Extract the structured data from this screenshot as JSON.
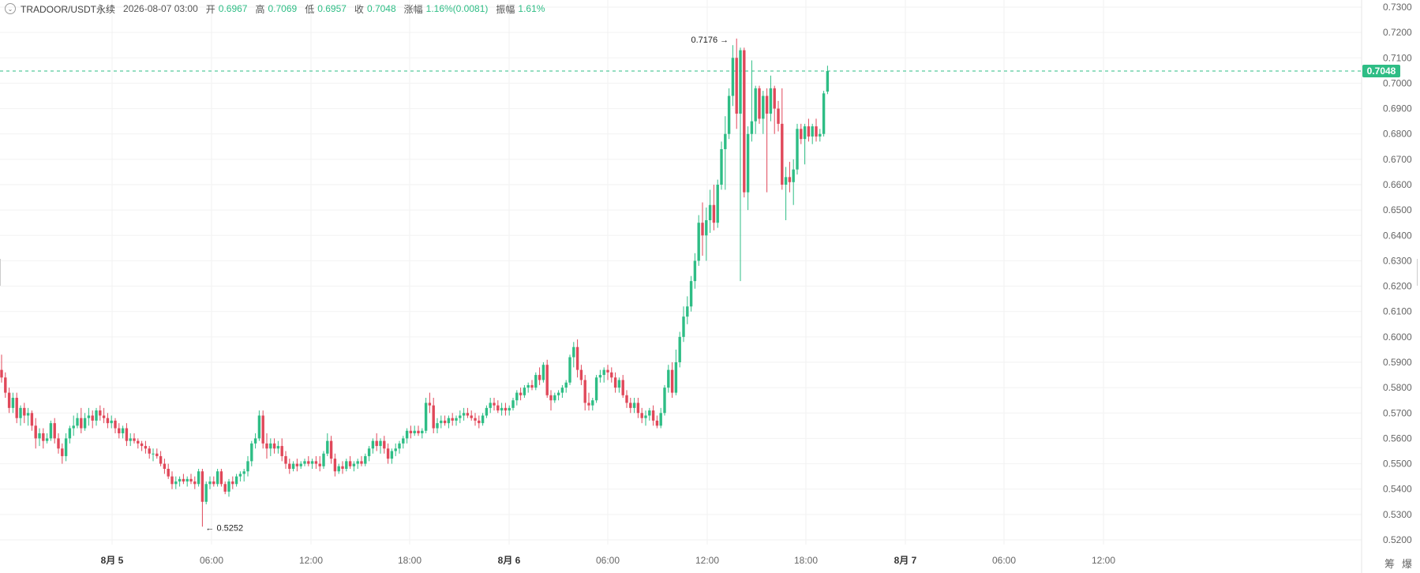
{
  "header": {
    "symbol": "TRADOOR/USDT永续",
    "timestamp": "2026-08-07 03:00",
    "open_label": "开",
    "open": "0.6967",
    "high_label": "高",
    "high": "0.7069",
    "low_label": "低",
    "low": "0.6957",
    "close_label": "收",
    "close": "0.7048",
    "change_label": "涨幅",
    "change": "1.16%(0.0081)",
    "amp_label": "振幅",
    "amplitude": "1.61%"
  },
  "corner": {
    "chip_label": "筹",
    "burst_label": "爆"
  },
  "colors": {
    "up": "#2ebd85",
    "down": "#e0485a",
    "grid": "#f2f2f2",
    "axis_text": "#666666"
  },
  "chart_data": {
    "type": "candlestick",
    "interval_hours": 0.5,
    "start_time": "2026-08-04 20:00",
    "y_ticks": [
      "0.7300",
      "0.7200",
      "0.7100",
      "0.7000",
      "0.6900",
      "0.6800",
      "0.6700",
      "0.6600",
      "0.6500",
      "0.6400",
      "0.6300",
      "0.6200",
      "0.6100",
      "0.6000",
      "0.5900",
      "0.5800",
      "0.5700",
      "0.5600",
      "0.5500",
      "0.5400",
      "0.5300",
      "0.5200"
    ],
    "y_range": [
      0.5175,
      0.7325
    ],
    "x_ticks": [
      "8月 5",
      "06:00",
      "12:00",
      "18:00",
      "8月 6",
      "06:00",
      "12:00",
      "18:00",
      "8月 7",
      "06:00",
      "12:00"
    ],
    "current_price": "0.7048",
    "annotations": [
      {
        "label": "0.7176",
        "kind": "high"
      },
      {
        "label": "0.5252",
        "kind": "low"
      }
    ],
    "candles": [
      [
        0.587,
        0.593,
        0.582,
        0.584
      ],
      [
        0.584,
        0.586,
        0.576,
        0.578
      ],
      [
        0.578,
        0.58,
        0.57,
        0.572
      ],
      [
        0.572,
        0.578,
        0.57,
        0.576
      ],
      [
        0.576,
        0.578,
        0.566,
        0.568
      ],
      [
        0.568,
        0.573,
        0.565,
        0.572
      ],
      [
        0.572,
        0.574,
        0.566,
        0.569
      ],
      [
        0.569,
        0.572,
        0.565,
        0.57
      ],
      [
        0.57,
        0.571,
        0.563,
        0.565
      ],
      [
        0.565,
        0.568,
        0.556,
        0.56
      ],
      [
        0.56,
        0.564,
        0.557,
        0.562
      ],
      [
        0.562,
        0.564,
        0.556,
        0.559
      ],
      [
        0.559,
        0.562,
        0.558,
        0.56
      ],
      [
        0.56,
        0.567,
        0.559,
        0.566
      ],
      [
        0.566,
        0.568,
        0.558,
        0.56
      ],
      [
        0.56,
        0.562,
        0.554,
        0.556
      ],
      [
        0.556,
        0.558,
        0.55,
        0.553
      ],
      [
        0.553,
        0.562,
        0.551,
        0.56
      ],
      [
        0.56,
        0.565,
        0.558,
        0.564
      ],
      [
        0.564,
        0.569,
        0.561,
        0.565
      ],
      [
        0.565,
        0.57,
        0.564,
        0.568
      ],
      [
        0.568,
        0.572,
        0.562,
        0.564
      ],
      [
        0.564,
        0.57,
        0.563,
        0.568
      ],
      [
        0.568,
        0.572,
        0.565,
        0.569
      ],
      [
        0.569,
        0.571,
        0.564,
        0.567
      ],
      [
        0.567,
        0.572,
        0.565,
        0.571
      ],
      [
        0.571,
        0.573,
        0.567,
        0.569
      ],
      [
        0.569,
        0.572,
        0.566,
        0.568
      ],
      [
        0.568,
        0.57,
        0.564,
        0.566
      ],
      [
        0.566,
        0.569,
        0.564,
        0.567
      ],
      [
        0.567,
        0.568,
        0.562,
        0.564
      ],
      [
        0.564,
        0.566,
        0.56,
        0.562
      ],
      [
        0.562,
        0.565,
        0.56,
        0.564
      ],
      [
        0.564,
        0.566,
        0.557,
        0.559
      ],
      [
        0.559,
        0.562,
        0.557,
        0.56
      ],
      [
        0.56,
        0.562,
        0.558,
        0.559
      ],
      [
        0.559,
        0.56,
        0.556,
        0.558
      ],
      [
        0.558,
        0.559,
        0.555,
        0.557
      ],
      [
        0.557,
        0.559,
        0.554,
        0.556
      ],
      [
        0.556,
        0.557,
        0.552,
        0.554
      ],
      [
        0.554,
        0.556,
        0.551,
        0.554
      ],
      [
        0.554,
        0.556,
        0.552,
        0.553
      ],
      [
        0.553,
        0.555,
        0.549,
        0.55
      ],
      [
        0.55,
        0.552,
        0.546,
        0.548
      ],
      [
        0.548,
        0.55,
        0.544,
        0.545
      ],
      [
        0.545,
        0.547,
        0.54,
        0.542
      ],
      [
        0.542,
        0.545,
        0.54,
        0.543
      ],
      [
        0.543,
        0.545,
        0.541,
        0.544
      ],
      [
        0.544,
        0.546,
        0.542,
        0.543
      ],
      [
        0.543,
        0.545,
        0.541,
        0.544
      ],
      [
        0.544,
        0.546,
        0.542,
        0.543
      ],
      [
        0.543,
        0.545,
        0.54,
        0.542
      ],
      [
        0.542,
        0.548,
        0.541,
        0.547
      ],
      [
        0.547,
        0.548,
        0.5252,
        0.535
      ],
      [
        0.535,
        0.543,
        0.534,
        0.542
      ],
      [
        0.542,
        0.545,
        0.54,
        0.543
      ],
      [
        0.543,
        0.545,
        0.541,
        0.542
      ],
      [
        0.542,
        0.548,
        0.541,
        0.547
      ],
      [
        0.547,
        0.548,
        0.541,
        0.542
      ],
      [
        0.542,
        0.543,
        0.538,
        0.539
      ],
      [
        0.539,
        0.544,
        0.537,
        0.543
      ],
      [
        0.543,
        0.545,
        0.54,
        0.542
      ],
      [
        0.542,
        0.546,
        0.541,
        0.545
      ],
      [
        0.545,
        0.547,
        0.543,
        0.546
      ],
      [
        0.546,
        0.548,
        0.543,
        0.547
      ],
      [
        0.547,
        0.553,
        0.545,
        0.551
      ],
      [
        0.551,
        0.559,
        0.549,
        0.558
      ],
      [
        0.558,
        0.562,
        0.556,
        0.56
      ],
      [
        0.56,
        0.571,
        0.559,
        0.569
      ],
      [
        0.569,
        0.571,
        0.556,
        0.558
      ],
      [
        0.558,
        0.562,
        0.552,
        0.556
      ],
      [
        0.556,
        0.56,
        0.553,
        0.558
      ],
      [
        0.558,
        0.56,
        0.554,
        0.556
      ],
      [
        0.556,
        0.559,
        0.554,
        0.557
      ],
      [
        0.557,
        0.56,
        0.551,
        0.553
      ],
      [
        0.553,
        0.555,
        0.548,
        0.55
      ],
      [
        0.55,
        0.552,
        0.546,
        0.548
      ],
      [
        0.548,
        0.551,
        0.547,
        0.55
      ],
      [
        0.55,
        0.552,
        0.547,
        0.549
      ],
      [
        0.549,
        0.551,
        0.548,
        0.55
      ],
      [
        0.55,
        0.552,
        0.549,
        0.551
      ],
      [
        0.551,
        0.553,
        0.549,
        0.55
      ],
      [
        0.55,
        0.552,
        0.548,
        0.551
      ],
      [
        0.551,
        0.553,
        0.548,
        0.55
      ],
      [
        0.55,
        0.553,
        0.547,
        0.549
      ],
      [
        0.549,
        0.555,
        0.548,
        0.554
      ],
      [
        0.554,
        0.562,
        0.553,
        0.559
      ],
      [
        0.559,
        0.561,
        0.55,
        0.552
      ],
      [
        0.552,
        0.554,
        0.545,
        0.547
      ],
      [
        0.547,
        0.55,
        0.546,
        0.549
      ],
      [
        0.549,
        0.551,
        0.546,
        0.548
      ],
      [
        0.548,
        0.552,
        0.547,
        0.551
      ],
      [
        0.551,
        0.553,
        0.548,
        0.549
      ],
      [
        0.549,
        0.551,
        0.547,
        0.55
      ],
      [
        0.55,
        0.552,
        0.548,
        0.551
      ],
      [
        0.551,
        0.553,
        0.549,
        0.55
      ],
      [
        0.55,
        0.554,
        0.549,
        0.553
      ],
      [
        0.553,
        0.557,
        0.551,
        0.556
      ],
      [
        0.556,
        0.56,
        0.554,
        0.559
      ],
      [
        0.559,
        0.562,
        0.555,
        0.557
      ],
      [
        0.557,
        0.56,
        0.554,
        0.559
      ],
      [
        0.559,
        0.561,
        0.554,
        0.556
      ],
      [
        0.556,
        0.558,
        0.55,
        0.552
      ],
      [
        0.552,
        0.556,
        0.55,
        0.555
      ],
      [
        0.555,
        0.558,
        0.553,
        0.556
      ],
      [
        0.556,
        0.559,
        0.554,
        0.558
      ],
      [
        0.558,
        0.561,
        0.556,
        0.56
      ],
      [
        0.56,
        0.564,
        0.558,
        0.563
      ],
      [
        0.563,
        0.565,
        0.56,
        0.562
      ],
      [
        0.562,
        0.565,
        0.561,
        0.563
      ],
      [
        0.563,
        0.565,
        0.561,
        0.562
      ],
      [
        0.562,
        0.564,
        0.56,
        0.563
      ],
      [
        0.563,
        0.576,
        0.562,
        0.574
      ],
      [
        0.574,
        0.578,
        0.57,
        0.573
      ],
      [
        0.573,
        0.576,
        0.562,
        0.564
      ],
      [
        0.564,
        0.568,
        0.562,
        0.566
      ],
      [
        0.566,
        0.569,
        0.564,
        0.567
      ],
      [
        0.567,
        0.569,
        0.565,
        0.566
      ],
      [
        0.566,
        0.569,
        0.564,
        0.568
      ],
      [
        0.568,
        0.57,
        0.565,
        0.567
      ],
      [
        0.567,
        0.569,
        0.565,
        0.568
      ],
      [
        0.568,
        0.571,
        0.566,
        0.569
      ],
      [
        0.569,
        0.572,
        0.567,
        0.57
      ],
      [
        0.57,
        0.572,
        0.568,
        0.569
      ],
      [
        0.569,
        0.571,
        0.567,
        0.568
      ],
      [
        0.568,
        0.57,
        0.565,
        0.567
      ],
      [
        0.567,
        0.569,
        0.564,
        0.566
      ],
      [
        0.566,
        0.57,
        0.565,
        0.569
      ],
      [
        0.569,
        0.573,
        0.568,
        0.572
      ],
      [
        0.572,
        0.576,
        0.57,
        0.574
      ],
      [
        0.574,
        0.576,
        0.571,
        0.573
      ],
      [
        0.573,
        0.575,
        0.57,
        0.571
      ],
      [
        0.571,
        0.574,
        0.569,
        0.572
      ],
      [
        0.572,
        0.574,
        0.569,
        0.571
      ],
      [
        0.571,
        0.573,
        0.569,
        0.572
      ],
      [
        0.572,
        0.576,
        0.571,
        0.575
      ],
      [
        0.575,
        0.579,
        0.573,
        0.578
      ],
      [
        0.578,
        0.58,
        0.575,
        0.577
      ],
      [
        0.577,
        0.581,
        0.576,
        0.58
      ],
      [
        0.58,
        0.582,
        0.578,
        0.581
      ],
      [
        0.581,
        0.583,
        0.579,
        0.58
      ],
      [
        0.58,
        0.586,
        0.579,
        0.585
      ],
      [
        0.585,
        0.588,
        0.581,
        0.583
      ],
      [
        0.583,
        0.59,
        0.582,
        0.589
      ],
      [
        0.589,
        0.591,
        0.576,
        0.577
      ],
      [
        0.577,
        0.579,
        0.571,
        0.575
      ],
      [
        0.575,
        0.578,
        0.574,
        0.577
      ],
      [
        0.577,
        0.579,
        0.575,
        0.578
      ],
      [
        0.578,
        0.581,
        0.576,
        0.58
      ],
      [
        0.58,
        0.583,
        0.578,
        0.582
      ],
      [
        0.582,
        0.593,
        0.581,
        0.592
      ],
      [
        0.592,
        0.598,
        0.588,
        0.596
      ],
      [
        0.596,
        0.599,
        0.584,
        0.587
      ],
      [
        0.587,
        0.589,
        0.581,
        0.583
      ],
      [
        0.583,
        0.585,
        0.571,
        0.574
      ],
      [
        0.574,
        0.578,
        0.571,
        0.573
      ],
      [
        0.573,
        0.576,
        0.571,
        0.575
      ],
      [
        0.575,
        0.585,
        0.574,
        0.584
      ],
      [
        0.584,
        0.587,
        0.582,
        0.585
      ],
      [
        0.585,
        0.588,
        0.582,
        0.587
      ],
      [
        0.587,
        0.589,
        0.583,
        0.586
      ],
      [
        0.586,
        0.588,
        0.582,
        0.584
      ],
      [
        0.584,
        0.586,
        0.578,
        0.58
      ],
      [
        0.58,
        0.584,
        0.578,
        0.583
      ],
      [
        0.583,
        0.585,
        0.576,
        0.577
      ],
      [
        0.577,
        0.579,
        0.572,
        0.574
      ],
      [
        0.574,
        0.576,
        0.57,
        0.572
      ],
      [
        0.572,
        0.576,
        0.57,
        0.574
      ],
      [
        0.574,
        0.576,
        0.568,
        0.57
      ],
      [
        0.57,
        0.572,
        0.566,
        0.568
      ],
      [
        0.568,
        0.571,
        0.565,
        0.569
      ],
      [
        0.569,
        0.572,
        0.567,
        0.571
      ],
      [
        0.571,
        0.573,
        0.565,
        0.567
      ],
      [
        0.567,
        0.569,
        0.564,
        0.565
      ],
      [
        0.565,
        0.572,
        0.564,
        0.57
      ],
      [
        0.57,
        0.581,
        0.569,
        0.58
      ],
      [
        0.58,
        0.589,
        0.578,
        0.587
      ],
      [
        0.587,
        0.59,
        0.576,
        0.578
      ],
      [
        0.578,
        0.595,
        0.577,
        0.59
      ],
      [
        0.59,
        0.602,
        0.588,
        0.6
      ],
      [
        0.6,
        0.612,
        0.598,
        0.608
      ],
      [
        0.608,
        0.616,
        0.605,
        0.612
      ],
      [
        0.612,
        0.624,
        0.61,
        0.622
      ],
      [
        0.622,
        0.633,
        0.619,
        0.63
      ],
      [
        0.63,
        0.648,
        0.628,
        0.645
      ],
      [
        0.645,
        0.653,
        0.632,
        0.64
      ],
      [
        0.64,
        0.651,
        0.63,
        0.646
      ],
      [
        0.646,
        0.658,
        0.641,
        0.652
      ],
      [
        0.652,
        0.66,
        0.642,
        0.645
      ],
      [
        0.645,
        0.662,
        0.643,
        0.66
      ],
      [
        0.66,
        0.677,
        0.658,
        0.674
      ],
      [
        0.674,
        0.687,
        0.658,
        0.68
      ],
      [
        0.68,
        0.698,
        0.678,
        0.695
      ],
      [
        0.695,
        0.715,
        0.691,
        0.71
      ],
      [
        0.71,
        0.7176,
        0.682,
        0.688
      ],
      [
        0.688,
        0.714,
        0.622,
        0.713
      ],
      [
        0.713,
        0.714,
        0.655,
        0.657
      ],
      [
        0.657,
        0.683,
        0.65,
        0.68
      ],
      [
        0.68,
        0.709,
        0.677,
        0.685
      ],
      [
        0.685,
        0.699,
        0.68,
        0.698
      ],
      [
        0.698,
        0.699,
        0.684,
        0.686
      ],
      [
        0.686,
        0.697,
        0.68,
        0.695
      ],
      [
        0.695,
        0.698,
        0.657,
        0.688
      ],
      [
        0.688,
        0.703,
        0.685,
        0.698
      ],
      [
        0.698,
        0.699,
        0.68,
        0.69
      ],
      [
        0.69,
        0.693,
        0.681,
        0.684
      ],
      [
        0.684,
        0.698,
        0.658,
        0.66
      ],
      [
        0.66,
        0.667,
        0.646,
        0.663
      ],
      [
        0.663,
        0.669,
        0.657,
        0.661
      ],
      [
        0.661,
        0.67,
        0.652,
        0.666
      ],
      [
        0.666,
        0.684,
        0.664,
        0.682
      ],
      [
        0.682,
        0.684,
        0.676,
        0.678
      ],
      [
        0.678,
        0.684,
        0.668,
        0.683
      ],
      [
        0.683,
        0.686,
        0.677,
        0.679
      ],
      [
        0.679,
        0.684,
        0.676,
        0.683
      ],
      [
        0.683,
        0.686,
        0.677,
        0.679
      ],
      [
        0.679,
        0.682,
        0.677,
        0.68
      ],
      [
        0.68,
        0.697,
        0.679,
        0.696
      ],
      [
        0.6967,
        0.7069,
        0.6957,
        0.7048
      ]
    ]
  }
}
